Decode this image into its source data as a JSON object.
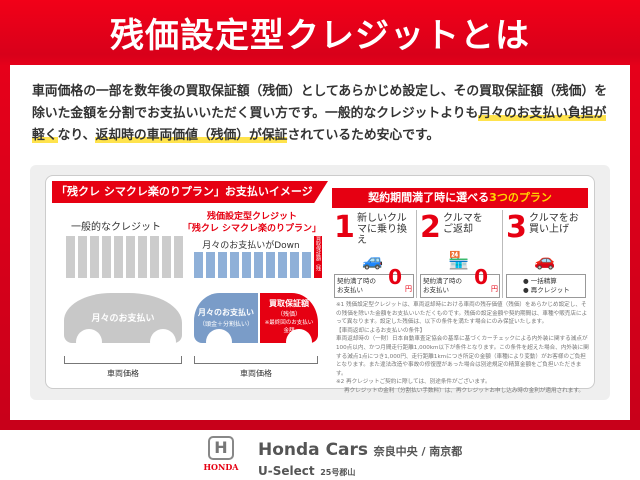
{
  "header": {
    "title": "残価設定型クレジットとは"
  },
  "intro": {
    "p1": "車両価格の一部を数年後の買取保証額（残価）としてあらかじめ設定し、その買取保証額（残価）を除いた金額を分割でお支払いいただく買い方です。一般的なクレジットよりも",
    "h1": "月々のお支払い負担が軽く",
    "p2": "なり、",
    "h2": "返却時の車両価値（残価）が保証",
    "p3": "されているため安心です。"
  },
  "image": {
    "heading": "「残クレ シマクレ楽のりプラン」お支払いイメージ",
    "general_label": "一般的なクレジット",
    "zancre_label1": "残価設定型クレジット",
    "zancre_label2": "「残クレ シマクレ楽のりプラン」",
    "down_label": "月々のお支払いがDown",
    "residual_bar": "買取保証額（残価）",
    "car_general": "月々のお支払い",
    "car_monthly": "月々のお支払い",
    "car_monthly_sub": "（頭金＋分割払い）",
    "car_residual": "買取保証額",
    "car_residual_sub": "（残価）",
    "car_residual_note": "※最終回のお支払い金額",
    "price_left": "車両価格",
    "price_right": "車両価格"
  },
  "plans": {
    "heading_a": "契約期間満了時に選べる",
    "heading_b": "3つのプラン",
    "items": [
      {
        "num": "1",
        "text": "新しいクルマに乗り換え",
        "box": "契約満了時のお支払い",
        "zero": "0",
        "unit": "円",
        "note": "※1"
      },
      {
        "num": "2",
        "text": "クルマをご返却",
        "box": "契約満了時のお支払い",
        "zero": "0",
        "unit": "円",
        "note": "※1"
      },
      {
        "num": "3",
        "text": "クルマをお買い上げ",
        "opt1": "● 一括精算",
        "opt2": "● 再クレジット",
        "note": "※2"
      }
    ]
  },
  "notes": [
    "※1 残価設定型クレジットは、車両返却時における車両の残存価値（残価）をあらかじめ設定し、その残価を除いた金額をお支払いいただくものです。残価の設定金額や契約期間は、車種や販売店によって異なります。設定した残価は、以下の条件を満たす場合にのみ保証いたします。",
    "【車両返却によるお支払いの条件】",
    "車両返却時の（一財）日本自動車査定協会の基準に基づくカーチェックによる内外装に関する減点が100点以内、かつ月間走行距離1,000km以下が条件となります。この条件を超えた場合、内外装に関する減点1点につき1,000円、走行距離1kmにつき所定の金額（車種により変動）がお客様のご負担となります。また違法改造や事故の修復歴があった場合は別途規定の精算金額をご負担いただきます。",
    "※2 再クレジットご契約に際しては、別途条件がございます。",
    "再クレジットの金利（分割払い手数料）は、再クレジットお申し込み時の金利が適用されます。"
  ],
  "footer": {
    "logo_text": "HONDA",
    "brand": "Honda Cars",
    "dealer": "奈良中央 / 南京都",
    "sub": "U-Select",
    "store": "25号郡山"
  },
  "colors": {
    "red": "#e60012",
    "blue": "#7a9cc8",
    "gray": "#c8c8c8",
    "highlight": "#ffe34d"
  }
}
